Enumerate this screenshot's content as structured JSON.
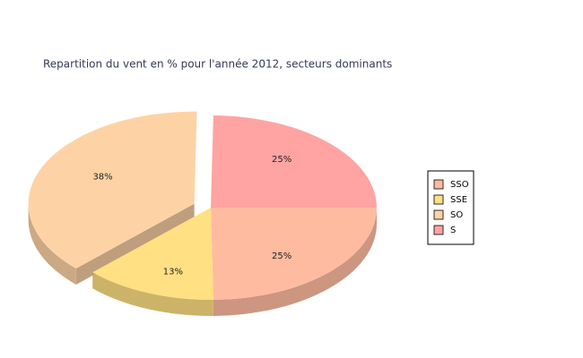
{
  "chart_data": {
    "type": "pie",
    "title": "Repartition du vent en % pour l'année 2012, secteurs dominants",
    "categories": [
      "SSO",
      "SSE",
      "SO",
      "S"
    ],
    "values": [
      25,
      13,
      38,
      25
    ],
    "value_labels": [
      "25%",
      "13%",
      "38%",
      "25%"
    ],
    "colors": [
      "#ffbba0",
      "#ffe082",
      "#fdd3a5",
      "#ffa3a3"
    ],
    "legend": "right"
  }
}
